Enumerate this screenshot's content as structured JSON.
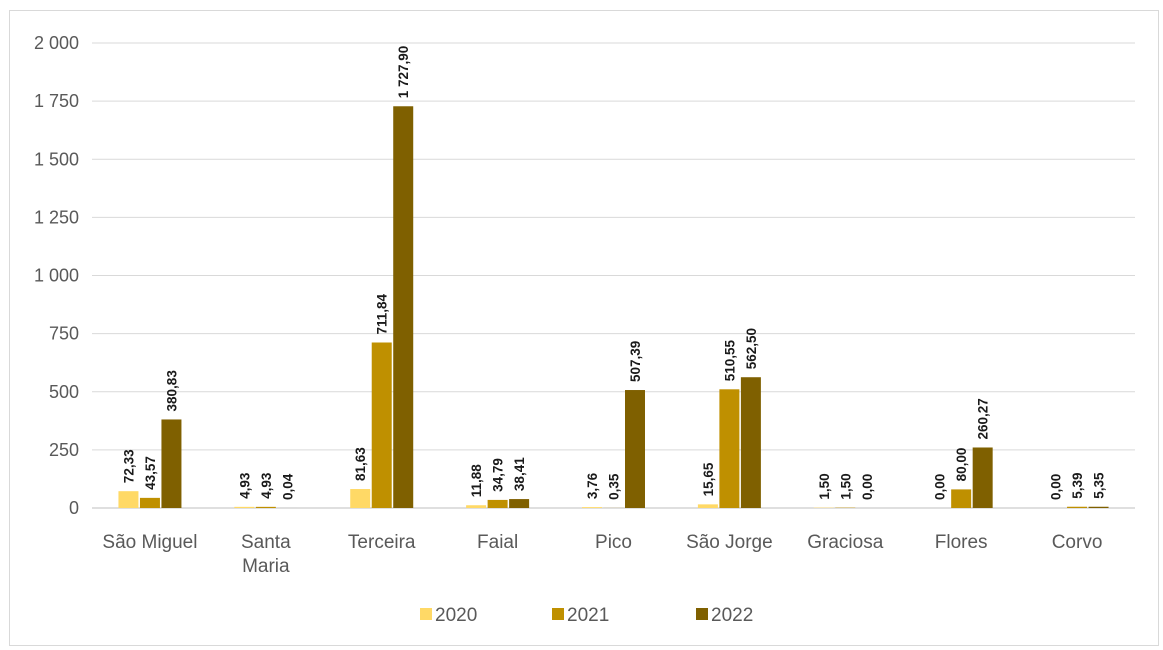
{
  "chart_data": {
    "type": "bar",
    "title": "",
    "xlabel": "",
    "ylabel": "",
    "categories": [
      [
        "São Miguel"
      ],
      [
        "Santa",
        "Maria"
      ],
      [
        "Terceira"
      ],
      [
        "Faial"
      ],
      [
        "Pico"
      ],
      [
        "São Jorge"
      ],
      [
        "Graciosa"
      ],
      [
        "Flores"
      ],
      [
        "Corvo"
      ]
    ],
    "series": [
      {
        "name": "2020",
        "color": "#ffd966",
        "values": [
          72.33,
          4.93,
          81.63,
          11.88,
          3.76,
          15.65,
          1.5,
          0.0,
          0.0
        ],
        "labels": [
          "72,33",
          "4,93",
          "81,63",
          "11,88",
          "3,76",
          "15,65",
          "1,50",
          "0,00",
          "0,00"
        ]
      },
      {
        "name": "2021",
        "color": "#bf9000",
        "values": [
          43.57,
          4.93,
          711.84,
          34.79,
          0.35,
          510.55,
          1.5,
          80.0,
          5.39
        ],
        "labels": [
          "43,57",
          "4,93",
          "711,84",
          "34,79",
          "0,35",
          "510,55",
          "1,50",
          "80,00",
          "5,39"
        ]
      },
      {
        "name": "2022",
        "color": "#7f6000",
        "values": [
          380.83,
          0.04,
          1727.9,
          38.41,
          507.39,
          562.5,
          0.0,
          260.27,
          5.35
        ],
        "labels": [
          "380,83",
          "0,04",
          "1 727,90",
          "38,41",
          "507,39",
          "562,50",
          "0,00",
          "260,27",
          "5,35"
        ]
      }
    ],
    "ylim": [
      0,
      2000
    ],
    "yticks": [
      0,
      250,
      500,
      750,
      1000,
      1250,
      1500,
      1750,
      2000
    ],
    "ytick_labels": [
      "0",
      "250",
      "500",
      "750",
      "1 000",
      "1 250",
      "1 500",
      "1 750",
      "2 000"
    ],
    "grid": true,
    "legend": "bottom"
  }
}
